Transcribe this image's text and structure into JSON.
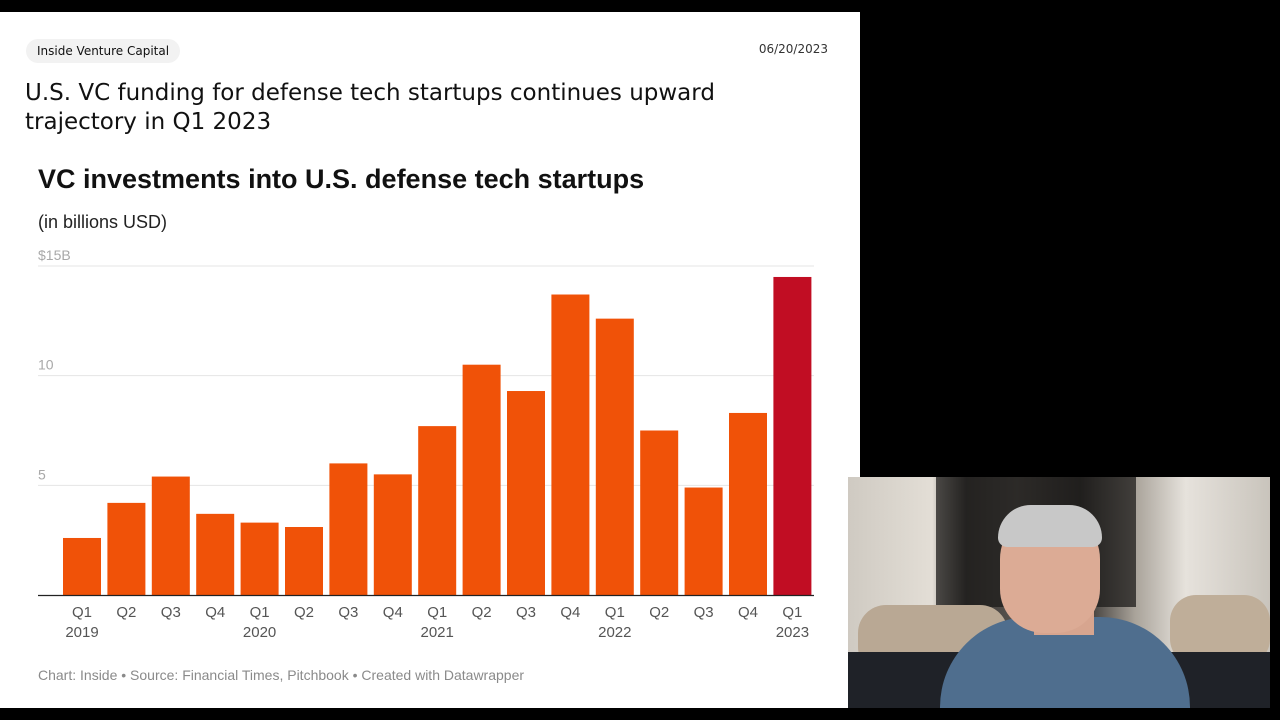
{
  "header": {
    "badge": "Inside Venture Capital",
    "date": "06/20/2023",
    "headline": "U.S. VC funding for defense tech startups continues upward trajectory in Q1 2023"
  },
  "chart_data": {
    "type": "bar",
    "title": "VC investments into U.S. defense tech startups",
    "subtitle": "(in billions USD)",
    "ylim": [
      0,
      15
    ],
    "ytick_values": [
      5,
      10,
      15
    ],
    "ytick_labels": [
      "5",
      "10",
      "$15B"
    ],
    "grid": true,
    "categories": [
      "Q1 2019",
      "Q2 2019",
      "Q3 2019",
      "Q4 2019",
      "Q1 2020",
      "Q2 2020",
      "Q3 2020",
      "Q4 2020",
      "Q1 2021",
      "Q2 2021",
      "Q3 2021",
      "Q4 2021",
      "Q1 2022",
      "Q2 2022",
      "Q3 2022",
      "Q4 2022",
      "Q1 2023"
    ],
    "tick_quarters": [
      "Q1",
      "Q2",
      "Q3",
      "Q4",
      "Q1",
      "Q2",
      "Q3",
      "Q4",
      "Q1",
      "Q2",
      "Q3",
      "Q4",
      "Q1",
      "Q2",
      "Q3",
      "Q4",
      "Q1"
    ],
    "tick_years": [
      "2019",
      "",
      "",
      "",
      "2020",
      "",
      "",
      "",
      "2021",
      "",
      "",
      "",
      "2022",
      "",
      "",
      "",
      "2023"
    ],
    "values": [
      2.6,
      4.2,
      5.4,
      3.7,
      3.3,
      3.1,
      6.0,
      5.5,
      7.7,
      10.5,
      9.3,
      13.7,
      12.6,
      7.5,
      4.9,
      8.3,
      14.5
    ],
    "colors": {
      "bar": "#f05208",
      "highlight": "#c10d23",
      "grid": "#e5e5e5",
      "axis": "#222222"
    },
    "highlight_index": 16,
    "source": "Chart: Inside • Source: Financial Times, Pitchbook • Created with Datawrapper"
  }
}
